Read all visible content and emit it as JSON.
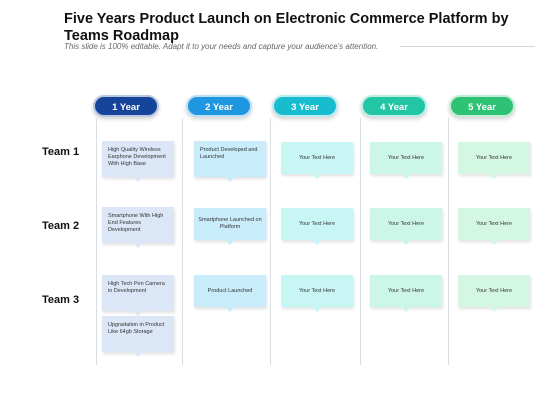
{
  "title": "Five Years Product Launch on Electronic Commerce Platform by Teams Roadmap",
  "subtitle": "This slide is 100% editable. Adapt it to your needs and capture your audience's attention.",
  "years": [
    {
      "label": "1 Year",
      "color": "#15449a"
    },
    {
      "label": "2 Year",
      "color": "#1e97e0"
    },
    {
      "label": "3 Year",
      "color": "#17bccf"
    },
    {
      "label": "4 Year",
      "color": "#22c6a4"
    },
    {
      "label": "5 Year",
      "color": "#2ec274"
    }
  ],
  "teams": [
    "Team 1",
    "Team 2",
    "Team 3"
  ],
  "cards": {
    "t1y1": "High Quality Wireless Earphone Development With High Base",
    "t1y2": "Product Developed and Launched",
    "t1y3": "Your Text Here",
    "t1y4": "Your Text Here",
    "t1y5": "Your Text Here",
    "t2y1": "Smartphone With High End Features Development",
    "t2y2": "Smartphone Launched on Platform",
    "t2y3": "Your Text Here",
    "t2y4": "Your Text Here",
    "t2y5": "Your Text Here",
    "t3y1": "High Tech Pen Camera in Development",
    "t3y1b": "Upgradation in Product Like 64gb Storage",
    "t3y2": "Product Launched",
    "t3y3": "Your Text Here",
    "t3y4": "Your Text Here",
    "t3y5": "Your Text Here"
  }
}
